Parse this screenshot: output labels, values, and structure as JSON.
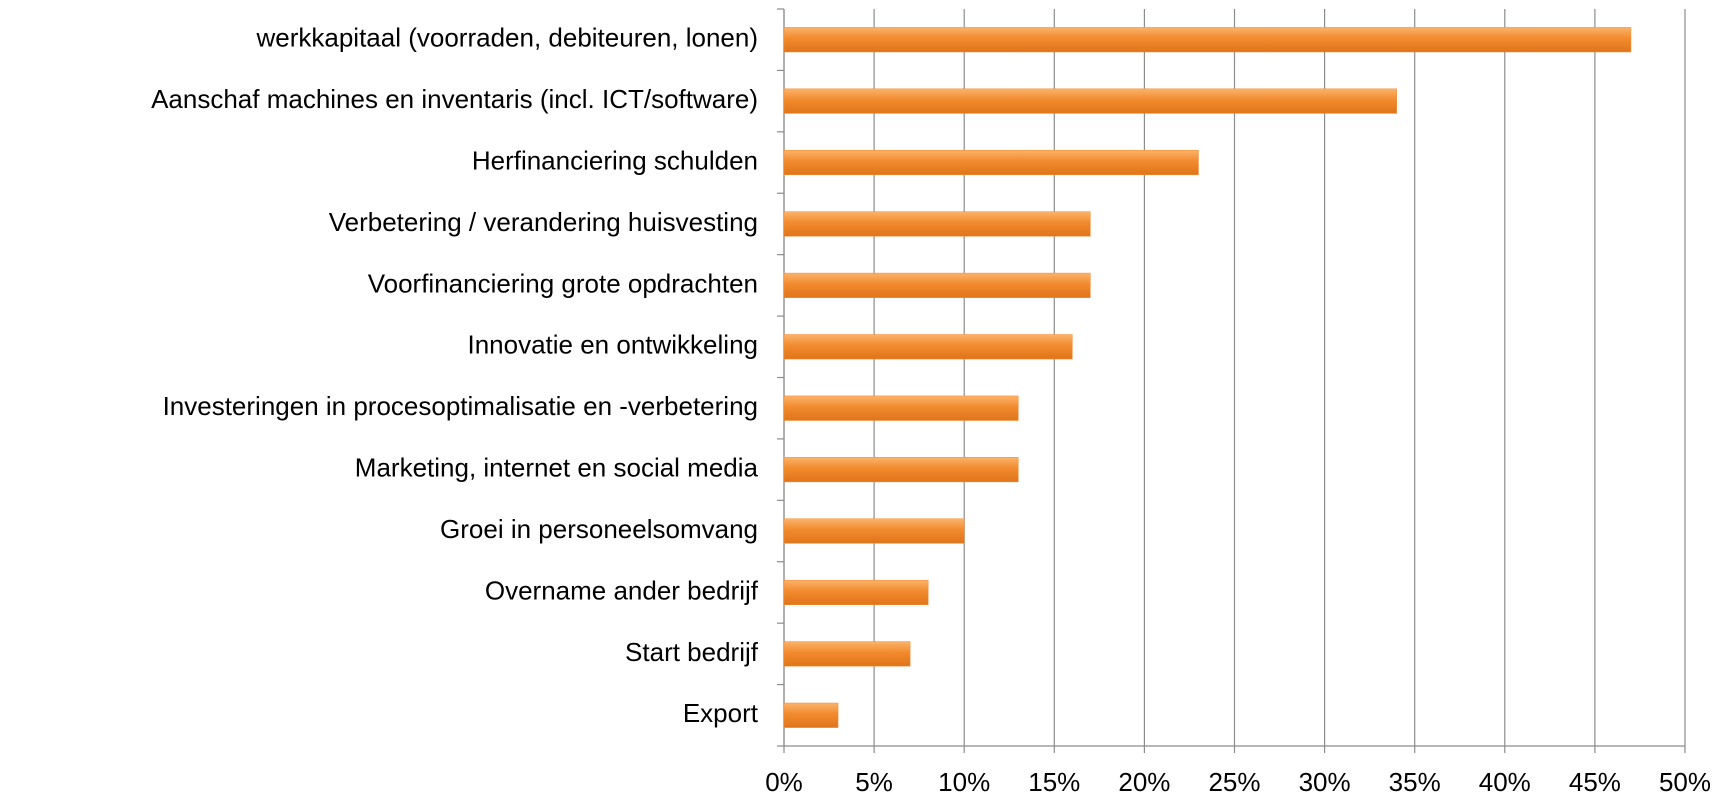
{
  "chart_data": {
    "type": "bar",
    "orientation": "horizontal",
    "categories": [
      "werkkapitaal (voorraden, debiteuren, lonen)",
      "Aanschaf machines en inventaris (incl. ICT/software)",
      "Herfinanciering schulden",
      "Verbetering / verandering huisvesting",
      "Voorfinanciering grote opdrachten",
      "Innovatie en ontwikkeling",
      "Investeringen in procesoptimalisatie en -verbetering",
      "Marketing, internet en social media",
      "Groei in personeelsomvang",
      "Overname ander bedrijf",
      "Start bedrijf",
      "Export"
    ],
    "values": [
      47,
      34,
      23,
      17,
      17,
      16,
      13,
      13,
      10,
      8,
      7,
      3
    ],
    "color": "#f28a2e",
    "xlim": [
      0,
      50
    ],
    "xticks": [
      {
        "value": 0,
        "label": "0%"
      },
      {
        "value": 5,
        "label": "5%"
      },
      {
        "value": 10,
        "label": "10%"
      },
      {
        "value": 15,
        "label": "15%"
      },
      {
        "value": 20,
        "label": "20%"
      },
      {
        "value": 25,
        "label": "25%"
      },
      {
        "value": 30,
        "label": "30%"
      },
      {
        "value": 35,
        "label": "35%"
      },
      {
        "value": 40,
        "label": "40%"
      },
      {
        "value": 45,
        "label": "45%"
      },
      {
        "value": 50,
        "label": "50%"
      }
    ],
    "grid": true
  }
}
